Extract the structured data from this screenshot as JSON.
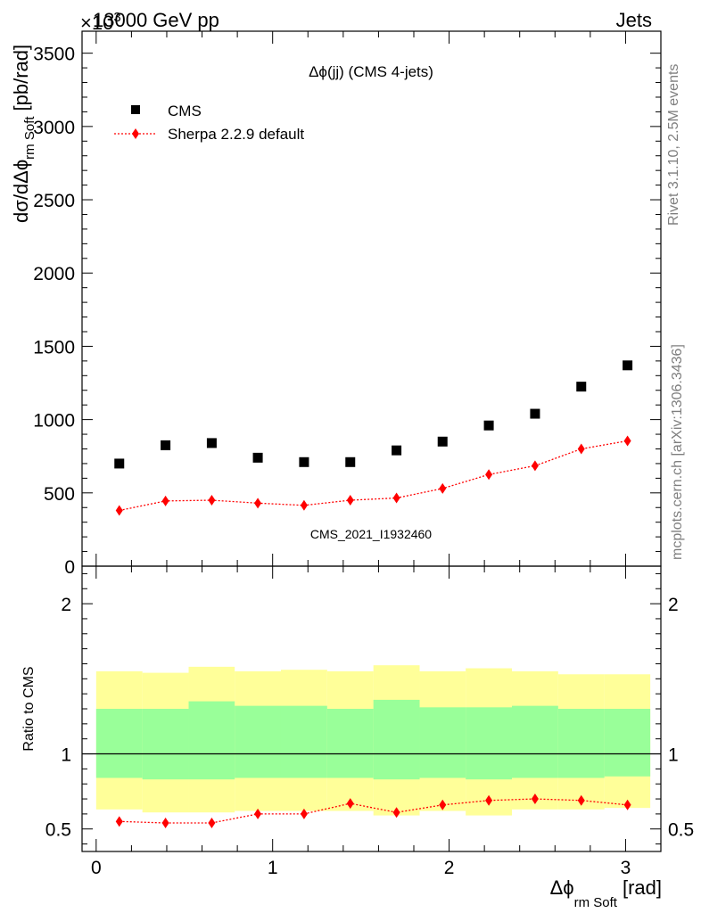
{
  "header": {
    "left": "13000 GeV pp",
    "right": "Jets",
    "exponent": "×10",
    "exponent_power": "3"
  },
  "side_texts": {
    "rivet": "Rivet 3.1.10,  2.5M events",
    "mcplots": "mcplots.cern.ch [arXiv:1306.3436]"
  },
  "colors": {
    "data": "#000000",
    "mc": "#ff0000",
    "band_inner": "#99ff99",
    "band_outer": "#ffff99",
    "watermark": "#808080"
  },
  "chart_data": [
    {
      "type": "scatter",
      "title": "Δϕ(jj) (CMS 4-jets)",
      "watermark": "CMS_2021_I1932460",
      "ylabel": "dσ/dΔϕ",
      "ylabel_sub": "rm Soft",
      "ylabel_unit": "[pb/rad]",
      "xlim": [
        -0.08,
        3.2
      ],
      "ylim": [
        0,
        3650
      ],
      "yticks": [
        0,
        500,
        1000,
        1500,
        2000,
        2500,
        3000,
        3500
      ],
      "ytick_labels": [
        "0",
        "500",
        "1000",
        "1500",
        "2000",
        "2500",
        "3000",
        "3500"
      ],
      "legend_position": "top-left",
      "series": [
        {
          "name": "CMS",
          "marker": "square",
          "x": [
            0.131,
            0.393,
            0.655,
            0.916,
            1.178,
            1.44,
            1.702,
            1.963,
            2.225,
            2.487,
            2.749,
            3.011
          ],
          "values": [
            700,
            825,
            840,
            740,
            710,
            710,
            790,
            850,
            960,
            1040,
            1225,
            1370
          ]
        },
        {
          "name": "Sherpa 2.2.9 default",
          "marker": "diamond",
          "line": "dotted",
          "x": [
            0.131,
            0.393,
            0.655,
            0.916,
            1.178,
            1.44,
            1.702,
            1.963,
            2.225,
            2.487,
            2.749,
            3.011
          ],
          "values": [
            380,
            445,
            450,
            430,
            415,
            450,
            465,
            530,
            625,
            685,
            800,
            855
          ]
        }
      ]
    },
    {
      "type": "scatter",
      "ylabel": "Ratio to CMS",
      "xlabel": "Δϕ",
      "xlabel_sub": "rm Soft",
      "xlabel_unit": "[rad]",
      "xlim": [
        -0.08,
        3.2
      ],
      "ylim": [
        0.35,
        2.25
      ],
      "yticks": [
        0.5,
        1,
        2
      ],
      "ytick_labels": [
        "0.5",
        "1",
        "2"
      ],
      "xticks": [
        0,
        1,
        2,
        3
      ],
      "xtick_labels": [
        "0",
        "1",
        "2",
        "3"
      ],
      "bin_edges": [
        0,
        0.262,
        0.524,
        0.785,
        1.047,
        1.309,
        1.571,
        1.833,
        2.094,
        2.356,
        2.618,
        2.88,
        3.14
      ],
      "band_inner": {
        "low": [
          0.84,
          0.83,
          0.83,
          0.84,
          0.84,
          0.84,
          0.83,
          0.84,
          0.83,
          0.84,
          0.84,
          0.85
        ],
        "high": [
          1.3,
          1.3,
          1.35,
          1.32,
          1.32,
          1.3,
          1.36,
          1.31,
          1.31,
          1.32,
          1.3,
          1.3
        ]
      },
      "band_outer": {
        "low": [
          0.63,
          0.61,
          0.61,
          0.62,
          0.62,
          0.62,
          0.59,
          0.62,
          0.59,
          0.63,
          0.63,
          0.64
        ],
        "high": [
          1.55,
          1.54,
          1.58,
          1.55,
          1.56,
          1.55,
          1.59,
          1.55,
          1.57,
          1.55,
          1.53,
          1.53
        ]
      },
      "series": [
        {
          "name": "Sherpa 2.2.9 default",
          "x": [
            0.131,
            0.393,
            0.655,
            0.916,
            1.178,
            1.44,
            1.702,
            1.963,
            2.225,
            2.487,
            2.749,
            3.011
          ],
          "values": [
            0.55,
            0.54,
            0.54,
            0.6,
            0.6,
            0.67,
            0.61,
            0.66,
            0.69,
            0.7,
            0.69,
            0.66
          ]
        }
      ]
    }
  ]
}
